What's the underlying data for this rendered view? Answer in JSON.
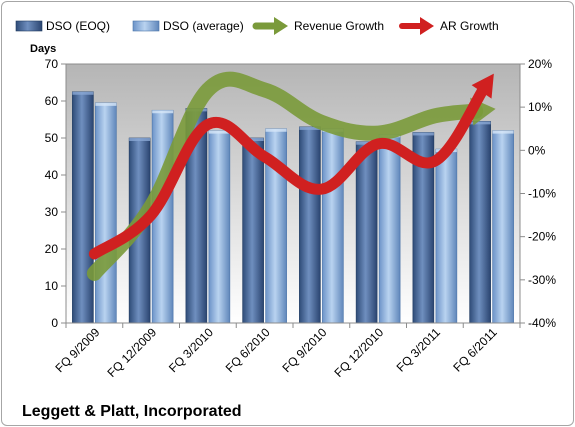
{
  "chart_data": {
    "type": "bar",
    "title": "Leggett & Platt, Incorporated",
    "ylabel": "Days",
    "ylim": [
      0,
      70
    ],
    "yticks": [
      0,
      10,
      20,
      30,
      40,
      50,
      60,
      70
    ],
    "y2lim": [
      -40,
      20
    ],
    "y2ticks": [
      -40,
      -30,
      -20,
      -10,
      0,
      10,
      20
    ],
    "y2tick_labels": [
      "-40%",
      "-30%",
      "-20%",
      "-10%",
      "0%",
      "10%",
      "20%"
    ],
    "categories": [
      "FQ 9/2009",
      "FQ 12/2009",
      "FQ 3/2010",
      "FQ 6/2010",
      "FQ 9/2010",
      "FQ 12/2010",
      "FQ 3/2011",
      "FQ 6/2011"
    ],
    "grid": false,
    "legend_position": "top",
    "series": [
      {
        "name": "DSO (EOQ)",
        "kind": "bar",
        "axis": "left",
        "color": "#4f6d99",
        "values": [
          62.5,
          50,
          58,
          50,
          53,
          49,
          51.5,
          54.5
        ]
      },
      {
        "name": "DSO (average)",
        "kind": "bar",
        "axis": "left",
        "color": "#8fb4e0",
        "values": [
          59.5,
          57.5,
          52,
          52.5,
          52.5,
          51,
          47,
          52
        ]
      },
      {
        "name": "Revenue Growth",
        "kind": "arrow-line",
        "axis": "right",
        "color": "#7a9a3a",
        "values": [
          -28.5,
          -13,
          14,
          14,
          6.5,
          4,
          8,
          9.5
        ]
      },
      {
        "name": "AR Growth",
        "kind": "arrow-line",
        "axis": "right",
        "color": "#d02020",
        "values": [
          -24,
          -15,
          6,
          -1.5,
          -9,
          1.5,
          -2.5,
          17
        ]
      }
    ]
  }
}
